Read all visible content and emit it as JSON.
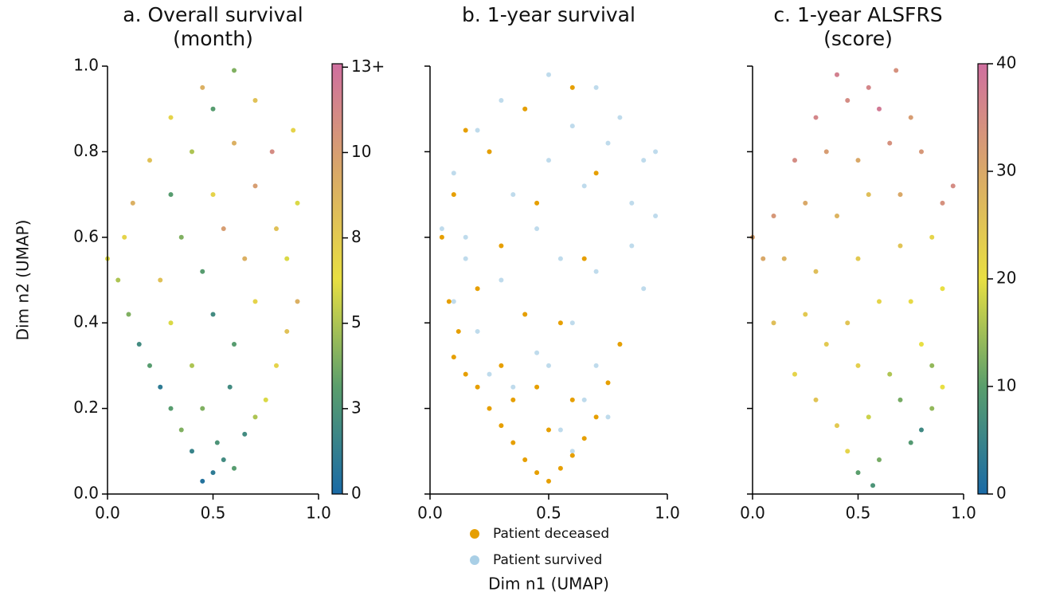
{
  "chart_data": [
    {
      "type": "scatter",
      "title": [
        "a. Overall survival",
        "(month)"
      ],
      "ylabel": "Dim n2 (UMAP)",
      "xlim": [
        0,
        1
      ],
      "ylim": [
        0,
        1
      ],
      "xticks": [
        {
          "value": 0,
          "label": "0.0"
        },
        0.5,
        {
          "value": 1,
          "label": "1.0"
        }
      ],
      "yticks": [
        {
          "value": 0,
          "label": "0.0"
        },
        0.2,
        0.4,
        0.6,
        0.8,
        {
          "value": 1,
          "label": "1.0"
        }
      ],
      "show_ytick_labels": true,
      "colormap": [
        "#1a6aa6",
        "#5a9e6c",
        "#e8df42",
        "#d9a868",
        "#cf6f9f"
      ],
      "clim": [
        0,
        12.6
      ],
      "cticks": [
        0,
        {
          "value": 2.5,
          "label": "3"
        },
        5,
        {
          "value": 7.5,
          "label": "8"
        },
        10,
        {
          "value": 12.5,
          "label": "13+"
        }
      ],
      "x": [
        0.5,
        0.45,
        0.55,
        0.4,
        0.6,
        0.52,
        0.35,
        0.65,
        0.3,
        0.7,
        0.25,
        0.75,
        0.45,
        0.58,
        0.2,
        0.8,
        0.15,
        0.85,
        0.4,
        0.6,
        0.1,
        0.9,
        0.3,
        0.5,
        0.7,
        0.05,
        0.25,
        0.45,
        0.65,
        0.85,
        0.08,
        0.35,
        0.55,
        0.8,
        0.12,
        0.3,
        0.5,
        0.7,
        0.9,
        0.2,
        0.4,
        0.6,
        0.78,
        0.3,
        0.5,
        0.7,
        0.45,
        0.6,
        0.88,
        0.0
      ],
      "y": [
        0.05,
        0.03,
        0.08,
        0.1,
        0.06,
        0.12,
        0.15,
        0.14,
        0.2,
        0.18,
        0.25,
        0.22,
        0.2,
        0.25,
        0.3,
        0.3,
        0.35,
        0.38,
        0.3,
        0.35,
        0.42,
        0.45,
        0.4,
        0.42,
        0.45,
        0.5,
        0.5,
        0.52,
        0.55,
        0.55,
        0.6,
        0.6,
        0.62,
        0.62,
        0.68,
        0.7,
        0.7,
        0.72,
        0.68,
        0.78,
        0.8,
        0.82,
        0.8,
        0.88,
        0.9,
        0.92,
        0.95,
        0.99,
        0.85,
        0.55
      ],
      "values": [
        1,
        0.5,
        2,
        1.5,
        3,
        2.5,
        4,
        2,
        3,
        5,
        1,
        6,
        4,
        2,
        3,
        7,
        2,
        8,
        5,
        3,
        4,
        9,
        6,
        2,
        7,
        5,
        8,
        3,
        9,
        6,
        7,
        4,
        10,
        8,
        9,
        3,
        7,
        10,
        6,
        8,
        5,
        9,
        11,
        7,
        3,
        8,
        9,
        4,
        7,
        6
      ]
    },
    {
      "type": "scatter",
      "title": [
        "b. 1-year survival"
      ],
      "xlabel": "Dim n1 (UMAP)",
      "xlim": [
        0,
        1
      ],
      "ylim": [
        0,
        1
      ],
      "xticks": [
        {
          "value": 0,
          "label": "0.0"
        },
        0.5,
        {
          "value": 1,
          "label": "1.0"
        }
      ],
      "yticks": [
        0,
        0.2,
        0.4,
        0.6,
        0.8,
        1
      ],
      "show_ytick_labels": false,
      "legend": "bottom",
      "series": [
        {
          "name": "Patient survived",
          "color": "#a9cfe6",
          "x": [
            0.5,
            0.3,
            0.7,
            0.2,
            0.8,
            0.4,
            0.6,
            0.1,
            0.9,
            0.25,
            0.75,
            0.5,
            0.35,
            0.65,
            0.05,
            0.95,
            0.15,
            0.85,
            0.45,
            0.55,
            0.3,
            0.7,
            0.1,
            0.9,
            0.4,
            0.6,
            0.2,
            0.8,
            0.5,
            0.35,
            0.65,
            0.25,
            0.75,
            0.45,
            0.55,
            0.15,
            0.85,
            0.95,
            0.6,
            0.7
          ],
          "y": [
            0.98,
            0.92,
            0.95,
            0.85,
            0.88,
            0.9,
            0.86,
            0.75,
            0.78,
            0.8,
            0.82,
            0.78,
            0.7,
            0.72,
            0.62,
            0.65,
            0.6,
            0.58,
            0.62,
            0.55,
            0.5,
            0.52,
            0.45,
            0.48,
            0.42,
            0.4,
            0.38,
            0.35,
            0.3,
            0.25,
            0.22,
            0.28,
            0.18,
            0.33,
            0.15,
            0.55,
            0.68,
            0.8,
            0.1,
            0.3
          ]
        },
        {
          "name": "Patient deceased",
          "color": "#e69f00",
          "x": [
            0.5,
            0.45,
            0.55,
            0.4,
            0.6,
            0.35,
            0.65,
            0.3,
            0.7,
            0.25,
            0.5,
            0.2,
            0.15,
            0.1,
            0.12,
            0.3,
            0.45,
            0.6,
            0.75,
            0.08,
            0.2,
            0.4,
            0.55,
            0.05,
            0.3,
            0.65,
            0.1,
            0.45,
            0.25,
            0.7,
            0.4,
            0.15,
            0.6,
            0.35,
            0.8
          ],
          "y": [
            0.03,
            0.05,
            0.06,
            0.08,
            0.09,
            0.12,
            0.13,
            0.16,
            0.18,
            0.2,
            0.15,
            0.25,
            0.28,
            0.32,
            0.38,
            0.3,
            0.25,
            0.22,
            0.26,
            0.45,
            0.48,
            0.42,
            0.4,
            0.6,
            0.58,
            0.55,
            0.7,
            0.68,
            0.8,
            0.75,
            0.9,
            0.85,
            0.95,
            0.22,
            0.35
          ]
        }
      ]
    },
    {
      "type": "scatter",
      "title": [
        "c. 1-year ALSFRS",
        "(score)"
      ],
      "xlim": [
        0,
        1
      ],
      "ylim": [
        0,
        1
      ],
      "xticks": [
        {
          "value": 0,
          "label": "0.0"
        },
        0.5,
        {
          "value": 1,
          "label": "1.0"
        }
      ],
      "yticks": [
        0,
        0.2,
        0.4,
        0.6,
        0.8,
        1
      ],
      "show_ytick_labels": false,
      "colormap": [
        "#1a6aa6",
        "#5a9e6c",
        "#e8df42",
        "#d9a868",
        "#cf6f9f"
      ],
      "clim": [
        0,
        40
      ],
      "cticks": [
        0,
        10,
        20,
        30,
        40
      ],
      "x": [
        0.57,
        0.5,
        0.6,
        0.45,
        0.8,
        0.75,
        0.85,
        0.4,
        0.55,
        0.7,
        0.9,
        0.3,
        0.2,
        0.65,
        0.5,
        0.35,
        0.8,
        0.1,
        0.25,
        0.45,
        0.6,
        0.75,
        0.9,
        0.05,
        0.15,
        0.3,
        0.5,
        0.7,
        0.85,
        0.1,
        0.25,
        0.4,
        0.55,
        0.7,
        0.9,
        0.2,
        0.35,
        0.5,
        0.65,
        0.8,
        0.3,
        0.45,
        0.6,
        0.75,
        0.4,
        0.55,
        0.68,
        0.0,
        0.95,
        0.85
      ],
      "y": [
        0.02,
        0.05,
        0.08,
        0.1,
        0.15,
        0.12,
        0.2,
        0.16,
        0.18,
        0.22,
        0.25,
        0.22,
        0.28,
        0.28,
        0.3,
        0.35,
        0.35,
        0.4,
        0.42,
        0.4,
        0.45,
        0.45,
        0.48,
        0.55,
        0.55,
        0.52,
        0.55,
        0.58,
        0.6,
        0.65,
        0.68,
        0.65,
        0.7,
        0.7,
        0.68,
        0.78,
        0.8,
        0.78,
        0.82,
        0.8,
        0.88,
        0.92,
        0.9,
        0.88,
        0.98,
        0.95,
        0.99,
        0.6,
        0.72,
        0.3
      ],
      "values": [
        8,
        10,
        12,
        22,
        6,
        9,
        14,
        24,
        18,
        12,
        20,
        25,
        22,
        16,
        23,
        24,
        20,
        26,
        24,
        25,
        22,
        21,
        20,
        30,
        28,
        26,
        24,
        25,
        22,
        33,
        30,
        28,
        26,
        30,
        34,
        35,
        32,
        30,
        34,
        33,
        36,
        35,
        38,
        32,
        37,
        36,
        34,
        31,
        35,
        14
      ]
    }
  ]
}
